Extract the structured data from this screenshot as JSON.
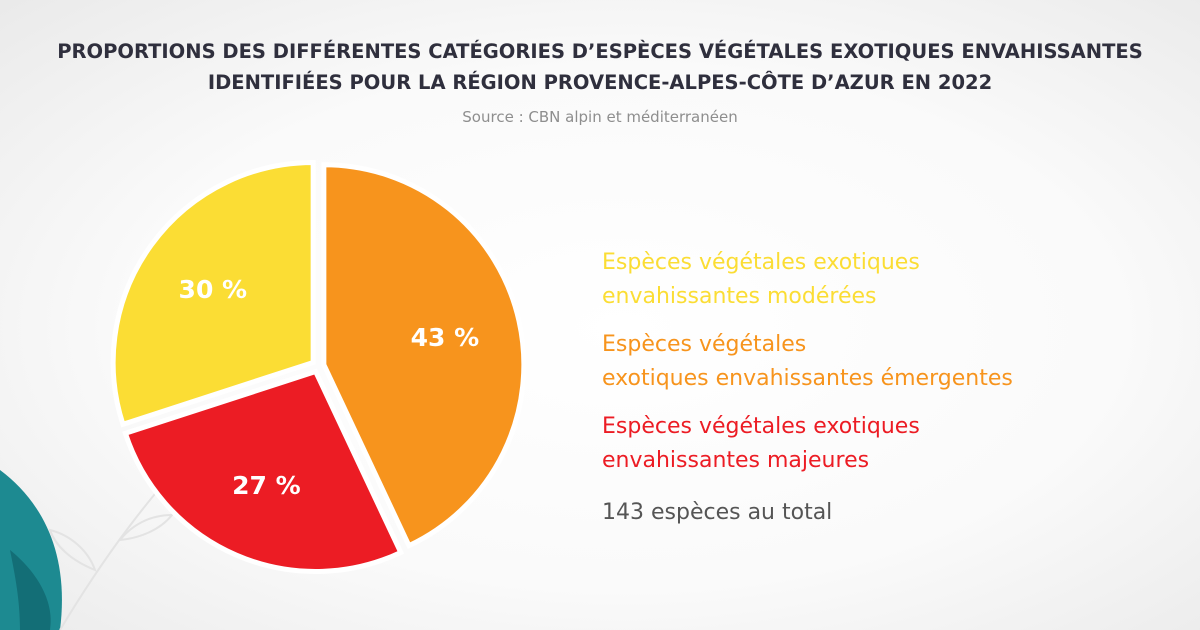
{
  "title_lines": [
    "PROPORTIONS DES DIFFÉRENTES CATÉGORIES D’ESPÈCES VÉGÉTALES EXOTIQUES ENVAHISSANTES",
    "IDENTIFIÉES POUR LA RÉGION PROVENCE-ALPES-CÔTE D’AZUR EN 2022"
  ],
  "source": "Source : CBN alpin et méditerranéen",
  "chart_data": {
    "type": "pie",
    "title": "PROPORTIONS DES DIFFÉRENTES CATÉGORIES D’ESPÈCES VÉGÉTALES EXOTIQUES ENVAHISSANTES IDENTIFIÉES POUR LA RÉGION PROVENCE-ALPES-CÔTE D’AZUR EN 2022",
    "legend_position": "right",
    "slices": [
      {
        "category": "emergentes",
        "value": 43,
        "label": "43 %",
        "color": "#f7941d",
        "legend_lines": [
          "Espèces végétales",
          "exotiques envahissantes émergentes"
        ]
      },
      {
        "category": "majeures",
        "value": 27,
        "label": "27 %",
        "color": "#ec1c24",
        "legend_lines": [
          "Espèces végétales exotiques",
          "envahissantes majeures"
        ]
      },
      {
        "category": "moderees",
        "value": 30,
        "label": "30 %",
        "color": "#fbdd34",
        "legend_lines": [
          "Espèces végétales exotiques",
          "envahissantes modérées"
        ]
      }
    ],
    "legend_order": [
      "moderees",
      "emergentes",
      "majeures"
    ],
    "total_text": "143 espèces au total"
  }
}
